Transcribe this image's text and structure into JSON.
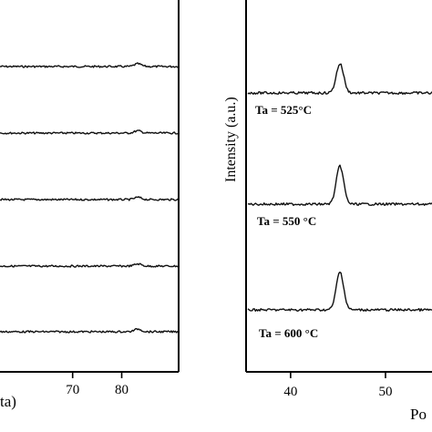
{
  "chart_data": [
    {
      "type": "line",
      "title": "",
      "xlabel": "ta)",
      "ylabel": "",
      "x_ticks": [
        70,
        80
      ],
      "xlim": [
        55.2,
        91.6
      ],
      "grid": false,
      "series": [
        {
          "peak_x": 83.3,
          "peak_height": 0.3,
          "values_note": ""
        },
        {
          "peak_x": 83.3,
          "peak_height": 0.25
        },
        {
          "peak_x": 83.3,
          "peak_height": 0.25
        },
        {
          "peak_x": 83.3,
          "peak_height": 0.25
        },
        {
          "peak_x": 83.3,
          "peak_height": 0.3
        }
      ]
    },
    {
      "type": "line",
      "title": "",
      "xlabel": "Po",
      "ylabel": "Intensity (a.u.)",
      "x_ticks": [
        40,
        50
      ],
      "xlim": [
        35.5,
        54.9
      ],
      "grid": false,
      "series": [
        {
          "name": "Ta = 525°C",
          "peak_x": 45.2,
          "peak_height": 1.0
        },
        {
          "name": "Ta = 550 °C",
          "peak_x": 45.2,
          "peak_height": 1.3
        },
        {
          "name": "Ta = 600 °C",
          "peak_x": 45.2,
          "peak_height": 1.3
        }
      ]
    }
  ]
}
